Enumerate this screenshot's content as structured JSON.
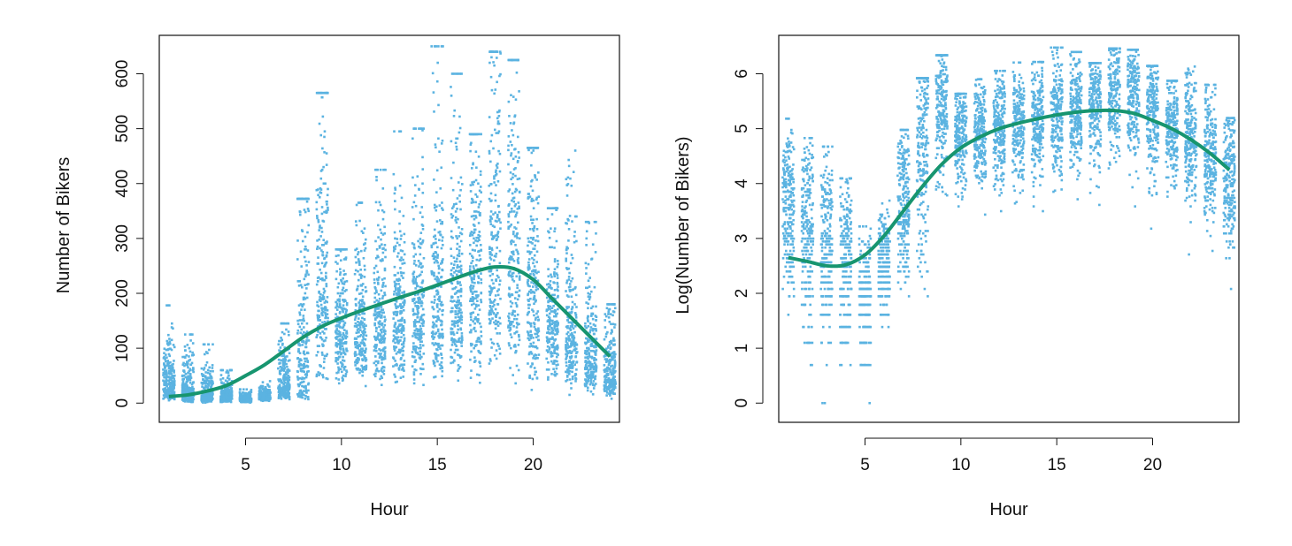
{
  "colors": {
    "points": "#5bb3e1",
    "smooth": "#17956f",
    "axis": "#111111"
  },
  "chart_data": [
    {
      "type": "scatter",
      "title": "",
      "xlabel": "Hour",
      "ylabel": "Number of Bikers",
      "xlim": [
        0.5,
        24.5
      ],
      "ylim": [
        -35,
        670
      ],
      "xticks": [
        5,
        10,
        15,
        20
      ],
      "yticks": [
        0,
        100,
        200,
        300,
        400,
        500,
        600
      ],
      "grid": false,
      "transform": "identity",
      "smooth": {
        "x": [
          1,
          2,
          3,
          4,
          5,
          6,
          7,
          8,
          9,
          10,
          11,
          12,
          13,
          14,
          15,
          16,
          17,
          18,
          19,
          20,
          21,
          22,
          23,
          24
        ],
        "y": [
          12,
          15,
          22,
          32,
          50,
          70,
          95,
          120,
          140,
          155,
          168,
          180,
          192,
          203,
          215,
          228,
          240,
          248,
          245,
          225,
          190,
          155,
          120,
          85
        ]
      }
    },
    {
      "type": "scatter",
      "title": "",
      "xlabel": "Hour",
      "ylabel": "Log(Number of Bikers)",
      "xlim": [
        0.5,
        24.5
      ],
      "ylim": [
        -0.35,
        6.7
      ],
      "xticks": [
        5,
        10,
        15,
        20
      ],
      "yticks": [
        0,
        1,
        2,
        3,
        4,
        5,
        6
      ],
      "grid": false,
      "transform": "log",
      "smooth": {
        "x": [
          1,
          2,
          3,
          4,
          5,
          6,
          7,
          8,
          9,
          10,
          11,
          12,
          13,
          14,
          15,
          16,
          17,
          18,
          19,
          20,
          21,
          22,
          23,
          24
        ],
        "y": [
          2.65,
          2.58,
          2.5,
          2.52,
          2.7,
          3.05,
          3.5,
          3.95,
          4.35,
          4.65,
          4.85,
          5.0,
          5.1,
          5.18,
          5.25,
          5.3,
          5.33,
          5.33,
          5.28,
          5.15,
          5.0,
          4.8,
          4.55,
          4.25
        ]
      }
    }
  ],
  "hourly_distribution": {
    "hours": [
      1,
      2,
      3,
      4,
      5,
      6,
      7,
      8,
      9,
      10,
      11,
      12,
      13,
      14,
      15,
      16,
      17,
      18,
      19,
      20,
      21,
      22,
      23,
      24
    ],
    "log_mean": [
      3.6,
      3.2,
      2.9,
      2.5,
      2.0,
      2.6,
      3.8,
      4.7,
      5.4,
      4.9,
      4.9,
      5.0,
      5.1,
      5.15,
      5.25,
      5.3,
      5.5,
      5.7,
      5.6,
      5.3,
      5.1,
      4.9,
      4.5,
      4.1
    ],
    "log_sd": [
      0.8,
      0.9,
      0.9,
      0.8,
      0.6,
      0.5,
      0.8,
      1.1,
      0.7,
      0.5,
      0.5,
      0.55,
      0.55,
      0.55,
      0.55,
      0.55,
      0.55,
      0.6,
      0.6,
      0.6,
      0.55,
      0.6,
      0.6,
      0.65
    ],
    "max": [
      178,
      125,
      107,
      60,
      25,
      40,
      145,
      372,
      565,
      280,
      365,
      425,
      495,
      500,
      650,
      600,
      490,
      640,
      625,
      465,
      355,
      460,
      330,
      180
    ],
    "n_per_hour": 230
  }
}
